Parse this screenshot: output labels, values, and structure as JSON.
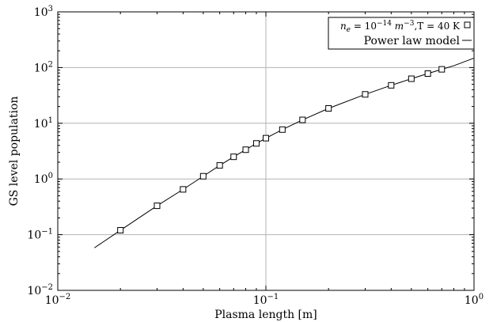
{
  "chart_data": {
    "type": "scatter",
    "xscale": "log",
    "yscale": "log",
    "xlim": [
      0.01,
      1
    ],
    "ylim": [
      0.01,
      1000
    ],
    "grid": true,
    "xlabel": "Plasma length [m]",
    "ylabel": "GS level population",
    "xticks": [
      {
        "value": 0.01,
        "base": "10",
        "exp": "−2"
      },
      {
        "value": 0.1,
        "base": "10",
        "exp": "−1"
      },
      {
        "value": 1,
        "base": "10",
        "exp": "0"
      }
    ],
    "yticks": [
      {
        "value": 0.01,
        "base": "10",
        "exp": "−2"
      },
      {
        "value": 0.1,
        "base": "10",
        "exp": "−1"
      },
      {
        "value": 1,
        "base": "10",
        "exp": "0"
      },
      {
        "value": 10,
        "base": "10",
        "exp": "1"
      },
      {
        "value": 100,
        "base": "10",
        "exp": "2"
      },
      {
        "value": 1000,
        "base": "10",
        "exp": "3"
      }
    ],
    "legend_position": "top-right",
    "series": [
      {
        "name": "n_e = 10^-14 m^-3, T = 40 K",
        "legend_parts": {
          "ne": "n",
          "sub": "e",
          "eq": " = 10",
          "exp1": "−14",
          "unit": " m",
          "exp2": "−3",
          "rest": ",T = 40 K"
        },
        "marker": "square",
        "x": [
          0.02,
          0.03,
          0.04,
          0.05,
          0.06,
          0.07,
          0.08,
          0.09,
          0.1,
          0.12,
          0.15,
          0.2,
          0.3,
          0.4,
          0.5,
          0.6,
          0.7
        ],
        "y": [
          0.12,
          0.33,
          0.65,
          1.12,
          1.75,
          2.5,
          3.35,
          4.35,
          5.4,
          7.7,
          11.5,
          18.5,
          33,
          48,
          63,
          78,
          93
        ]
      },
      {
        "name": "Power law model",
        "line": true,
        "x": [
          0.015,
          0.02,
          0.03,
          0.04,
          0.05,
          0.06,
          0.07,
          0.08,
          0.09,
          0.1,
          0.12,
          0.15,
          0.2,
          0.3,
          0.4,
          0.5,
          0.6,
          0.7,
          0.8,
          1.0
        ],
        "y": [
          0.058,
          0.12,
          0.33,
          0.65,
          1.12,
          1.75,
          2.5,
          3.35,
          4.35,
          5.4,
          7.7,
          11.5,
          18.5,
          33,
          48,
          63,
          78,
          93,
          108,
          148
        ]
      }
    ]
  }
}
